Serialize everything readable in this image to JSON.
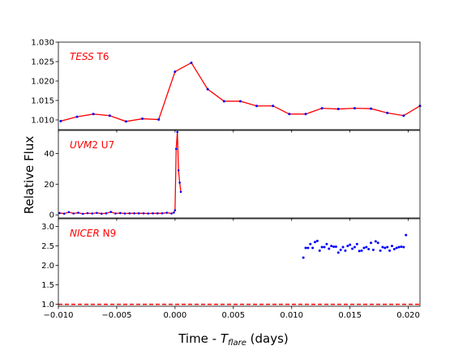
{
  "figure": {
    "ylabel": "Relative Flux",
    "xlabel_main": "Time - ",
    "xlabel_var": "T",
    "xlabel_sub": "flare",
    "xlabel_unit": " (days)"
  },
  "chart_data": [
    {
      "type": "line",
      "panel_label_italic": "TESS",
      "panel_label_rest": " T6",
      "xlim": [
        -0.01,
        0.021
      ],
      "ylim": [
        1.0075,
        1.03
      ],
      "x_ticks": [
        -0.01,
        -0.005,
        0.0,
        0.005,
        0.01,
        0.015,
        0.02
      ],
      "y_ticks": [
        1.01,
        1.015,
        1.02,
        1.025,
        1.03
      ],
      "y_tick_labels": [
        "1.010",
        "1.015",
        "1.020",
        "1.025",
        "1.030"
      ],
      "line_color": "#ff0000",
      "marker_color": "#0000ff",
      "series": [
        {
          "x": [
            -0.0098,
            -0.0084,
            -0.007,
            -0.0056,
            -0.0042,
            -0.0028,
            -0.0014,
            0.0,
            0.0014,
            0.0028,
            0.0042,
            0.0056,
            0.007,
            0.0084,
            0.0098,
            0.0112,
            0.0126,
            0.014,
            0.0154,
            0.0168,
            0.0182,
            0.0196,
            0.021
          ],
          "y": [
            1.0097,
            1.0108,
            1.0115,
            1.0111,
            1.0096,
            1.0103,
            1.0101,
            1.0224,
            1.0247,
            1.0179,
            1.0148,
            1.0148,
            1.0136,
            1.0136,
            1.0115,
            1.0115,
            1.013,
            1.0128,
            1.013,
            1.0129,
            1.0118,
            1.0111,
            1.0136
          ]
        }
      ]
    },
    {
      "type": "line",
      "panel_label_italic": "UVM",
      "panel_label_rest": "2 U7",
      "xlim": [
        -0.01,
        0.021
      ],
      "ylim": [
        -2,
        55
      ],
      "x_ticks": [
        -0.01,
        -0.005,
        0.0,
        0.005,
        0.01,
        0.015,
        0.02
      ],
      "y_ticks": [
        0,
        20,
        40
      ],
      "y_tick_labels": [
        "0",
        "20",
        "40"
      ],
      "line_color": "#ff0000",
      "marker_color": "#0000ff",
      "series": [
        {
          "x": [
            -0.0099,
            -0.0095,
            -0.0091,
            -0.0087,
            -0.0083,
            -0.0079,
            -0.0075,
            -0.0071,
            -0.0067,
            -0.0063,
            -0.0059,
            -0.0055,
            -0.0051,
            -0.0047,
            -0.0043,
            -0.0039,
            -0.0035,
            -0.0031,
            -0.0027,
            -0.0023,
            -0.0019,
            -0.0015,
            -0.0011,
            -0.0007,
            -0.0003,
            -0.0001,
            0.0,
            0.0001,
            0.0002,
            0.0003,
            0.0004,
            0.0005
          ],
          "y": [
            1.2,
            0.8,
            1.8,
            0.9,
            1.4,
            0.7,
            1.1,
            0.9,
            1.3,
            0.8,
            1.0,
            1.9,
            0.9,
            1.2,
            0.9,
            1.0,
            1.0,
            1.0,
            1.0,
            0.9,
            1.0,
            1.0,
            1.0,
            1.4,
            0.9,
            1.5,
            3.0,
            43.0,
            54.0,
            29.0,
            21.0,
            15.0
          ]
        }
      ]
    },
    {
      "type": "scatter",
      "panel_label_italic": "NICER",
      "panel_label_rest": " N9",
      "xlim": [
        -0.01,
        0.021
      ],
      "ylim": [
        0.95,
        3.2
      ],
      "x_ticks": [
        -0.01,
        -0.005,
        0.0,
        0.005,
        0.01,
        0.015,
        0.02
      ],
      "x_tick_labels": [
        "−0.010",
        "−0.005",
        "0.000",
        "0.005",
        "0.010",
        "0.015",
        "0.020"
      ],
      "y_ticks": [
        1.0,
        1.5,
        2.0,
        2.5,
        3.0
      ],
      "y_tick_labels": [
        "1.0",
        "1.5",
        "2.0",
        "2.5",
        "3.0"
      ],
      "marker_color": "#0000ff",
      "reference_line": {
        "y": 1.0,
        "color": "#ff0000",
        "style": "dashed"
      },
      "series": [
        {
          "x": [
            0.011,
            0.0112,
            0.0114,
            0.0116,
            0.0118,
            0.012,
            0.0122,
            0.0124,
            0.0126,
            0.0128,
            0.013,
            0.0132,
            0.0134,
            0.0136,
            0.0138,
            0.014,
            0.0142,
            0.0144,
            0.0146,
            0.0148,
            0.015,
            0.0152,
            0.0154,
            0.0156,
            0.0158,
            0.016,
            0.0162,
            0.0164,
            0.0166,
            0.0168,
            0.017,
            0.0172,
            0.0174,
            0.0176,
            0.0178,
            0.018,
            0.0182,
            0.0184,
            0.0186,
            0.0188,
            0.019,
            0.0192,
            0.0194,
            0.0196,
            0.0198
          ],
          "y": [
            2.2,
            2.45,
            2.45,
            2.55,
            2.45,
            2.6,
            2.63,
            2.38,
            2.47,
            2.47,
            2.55,
            2.43,
            2.5,
            2.48,
            2.48,
            2.33,
            2.4,
            2.47,
            2.38,
            2.5,
            2.53,
            2.43,
            2.47,
            2.55,
            2.37,
            2.38,
            2.45,
            2.47,
            2.42,
            2.58,
            2.4,
            2.62,
            2.58,
            2.38,
            2.47,
            2.45,
            2.47,
            2.38,
            2.5,
            2.42,
            2.45,
            2.47,
            2.48,
            2.47,
            2.78
          ]
        }
      ]
    }
  ]
}
